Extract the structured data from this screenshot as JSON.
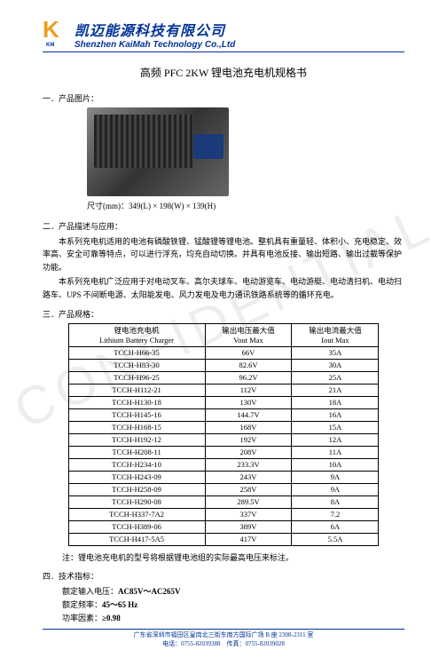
{
  "header": {
    "company_zh": "凯迈能源科技有限公司",
    "company_en": "Shenzhen KaiMah Technology Co.,Ltd",
    "logo_letter": "K",
    "logo_sub": "KM"
  },
  "doc_title": "高频 PFC 2KW 锂电池充电机规格书",
  "sections": {
    "s1": "一．产品图片：",
    "s2": "二．产品描述与应用：",
    "s3": "三．产品规格：",
    "s4": "四．技术指标："
  },
  "dims_label": "尺寸(mm)：",
  "dims_value": "349(L) × 198(W) × 139(H)",
  "desc_p1": "本系列充电机适用的电池有磷酸铁锂、锰酸锂等锂电池。整机具有重量轻、体积小、充电稳定、效率高、安全可靠等特点，可以进行浮充，均充自动切换。并具有电池反接、输出短路、输出过载等保护功能。",
  "desc_p2": "本系列充电机广泛应用于对电动叉车、高尔夫球车、电动游览车、电动游艇、电动清扫机、电动扫路车、UPS 不间断电源、太阳能发电、风力发电及电力通讯铁路系统等的循环充电。",
  "table": {
    "col1_zh": "锂电池充电机",
    "col1_en": "Lithium Battery Charger",
    "col2_zh": "输出电压最大值",
    "col2_en": "Vout Max",
    "col3_zh": "输出电流最大值",
    "col3_en": "Iout Max",
    "rows": [
      {
        "m": "TCCH-H66-35",
        "v": "66V",
        "i": "35A"
      },
      {
        "m": "TCCH-H83-30",
        "v": "82.6V",
        "i": "30A"
      },
      {
        "m": "TCCH-H96-25",
        "v": "96.2V",
        "i": "25A"
      },
      {
        "m": "TCCH-H112-21",
        "v": "112V",
        "i": "21A"
      },
      {
        "m": "TCCH-H130-18",
        "v": "130V",
        "i": "18A"
      },
      {
        "m": "TCCH-H145-16",
        "v": "144.7V",
        "i": "16A"
      },
      {
        "m": "TCCH-H168-15",
        "v": "168V",
        "i": "15A"
      },
      {
        "m": "TCCH-H192-12",
        "v": "192V",
        "i": "12A"
      },
      {
        "m": "TCCH-H208-11",
        "v": "208V",
        "i": "11A"
      },
      {
        "m": "TCCH-H234-10",
        "v": "233.3V",
        "i": "10A"
      },
      {
        "m": "TCCH-H243-09",
        "v": "243V",
        "i": "9A"
      },
      {
        "m": "TCCH-H258-09",
        "v": "258V",
        "i": "9A"
      },
      {
        "m": "TCCH-H290-08",
        "v": "289.5V",
        "i": "8A"
      },
      {
        "m": "TCCH-H337-7A2",
        "v": "337V",
        "i": "7.2"
      },
      {
        "m": "TCCH-H389-06",
        "v": "389V",
        "i": "6A"
      },
      {
        "m": "TCCH-H417-5A5",
        "v": "417V",
        "i": "5.5A"
      }
    ]
  },
  "note": "注：锂电池充电机的型号将根据锂电池组的实际最高电压来标注。",
  "tech": {
    "t1_label": "额定输入电压：",
    "t1_value": "AC85V～AC265V",
    "t2_label": "额定频率：",
    "t2_value": "45～65 Hz",
    "t3_label": "功率因素：",
    "t3_value": "≥0.98"
  },
  "footer": {
    "addr": "广东省深圳市福田区皇岗北三街东南方国际广场 B 座 2308-2311 室",
    "tel_label": "电话：",
    "tel": "0755-82039388",
    "fax_label": "传真：",
    "fax": "0755-82039028"
  },
  "watermark": "CONFIDENTIAL",
  "colors": {
    "brand": "#003399",
    "logo": "#e8a020",
    "text": "#000000",
    "bg": "#ffffff"
  }
}
